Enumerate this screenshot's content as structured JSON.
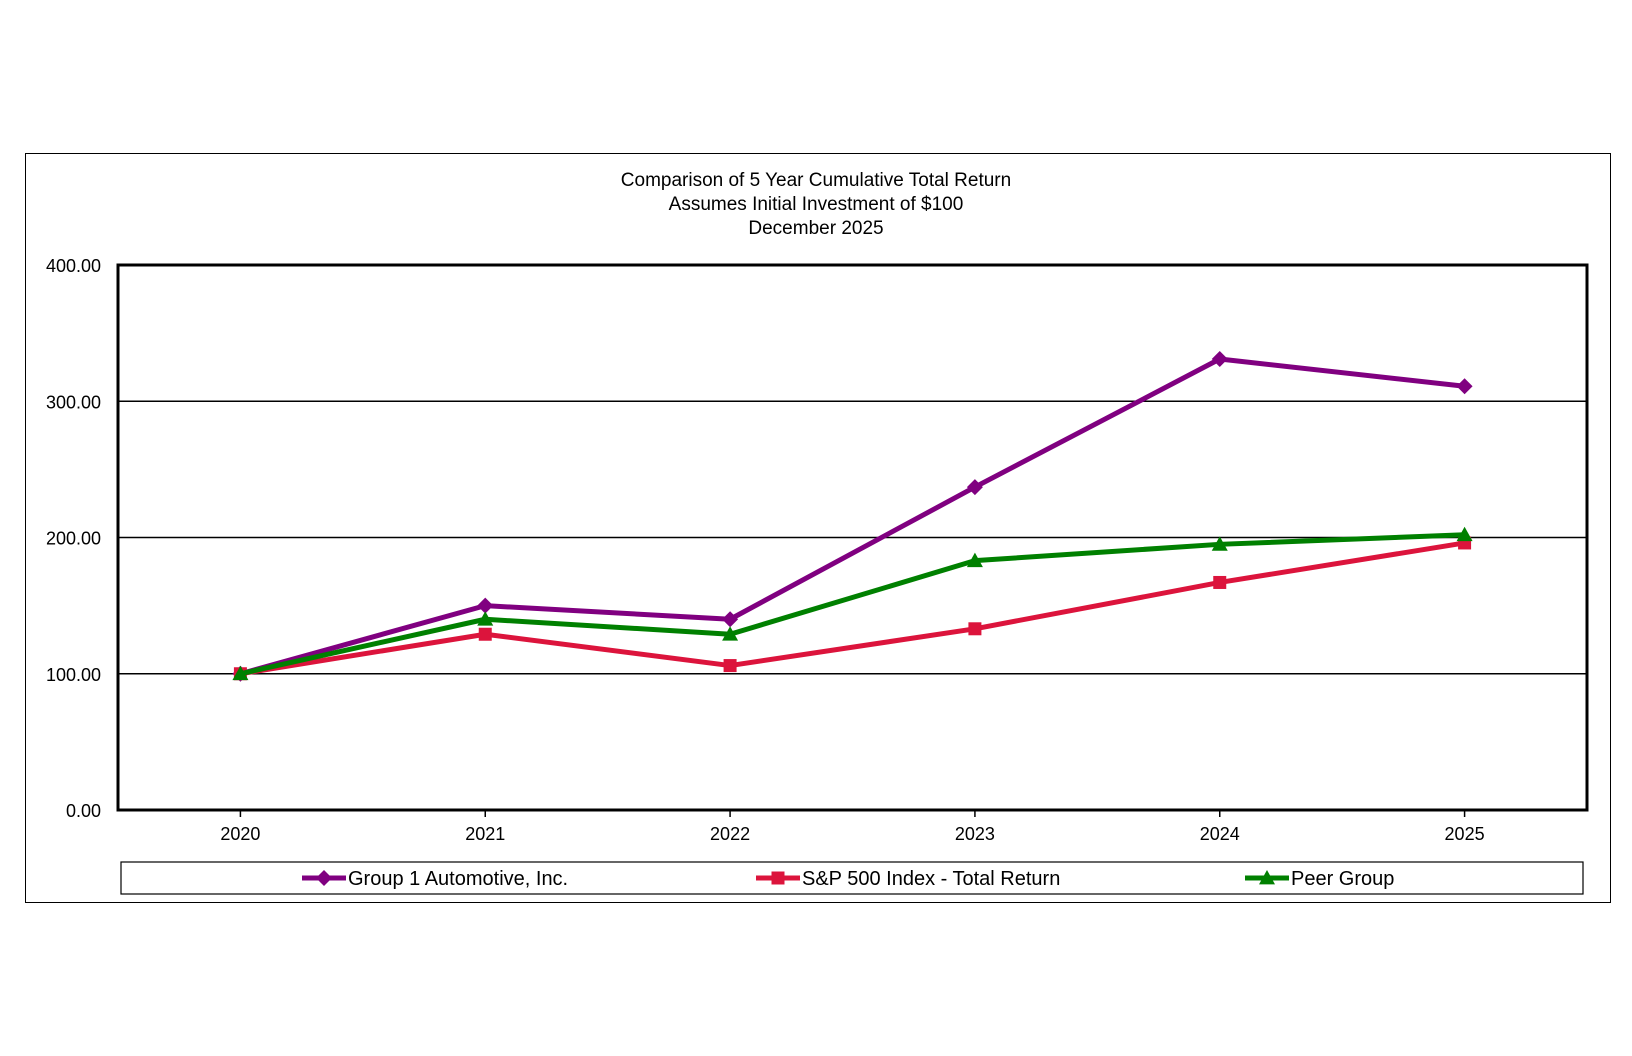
{
  "chart_data": {
    "type": "line",
    "title": [
      "Comparison of 5 Year Cumulative Total Return",
      "Assumes Initial Investment of $100",
      "December 2025"
    ],
    "xlabel": "",
    "ylabel": "",
    "categories": [
      "2020",
      "2021",
      "2022",
      "2023",
      "2024",
      "2025"
    ],
    "ylim": [
      0,
      400
    ],
    "yticks": [
      0,
      100,
      200,
      300,
      400
    ],
    "ytick_labels": [
      "0.00",
      "100.00",
      "200.00",
      "300.00",
      "400.00"
    ],
    "grid": true,
    "legend_position": "bottom",
    "series": [
      {
        "name": "Group 1 Automotive, Inc.",
        "color": "#800080",
        "marker": "diamond",
        "values": [
          100,
          150,
          140,
          237,
          331,
          311
        ]
      },
      {
        "name": "S&P 500 Index - Total Return",
        "color": "#DC143C",
        "marker": "square",
        "values": [
          100,
          129,
          106,
          133,
          167,
          196
        ]
      },
      {
        "name": "Peer Group",
        "color": "#008000",
        "marker": "triangle",
        "values": [
          100,
          140,
          129,
          183,
          195,
          202
        ]
      }
    ]
  }
}
